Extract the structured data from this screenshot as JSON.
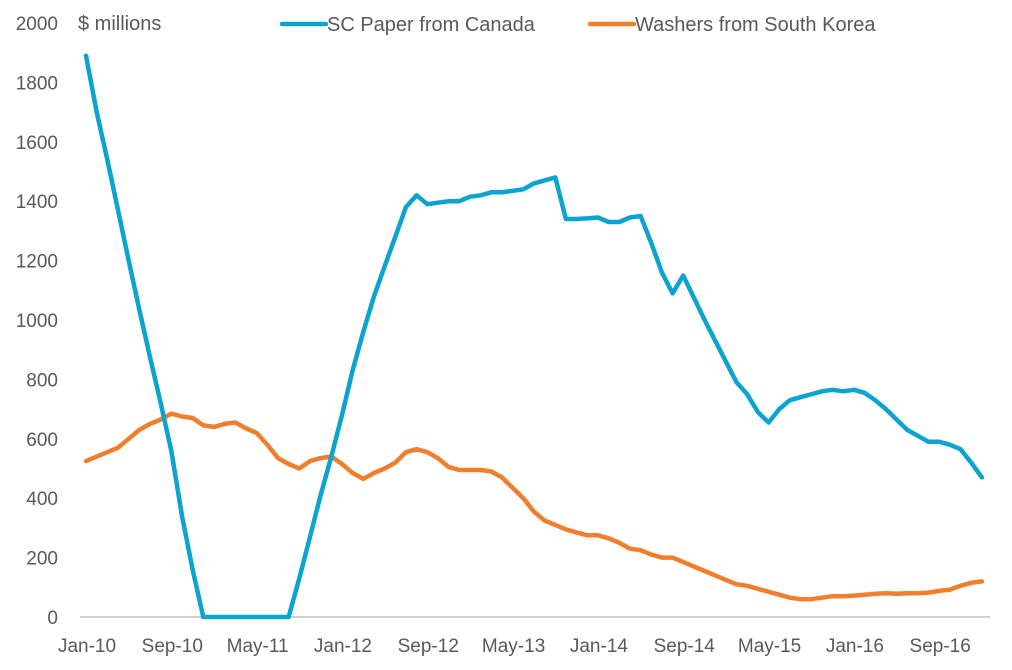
{
  "chart_data": {
    "type": "line",
    "title": "",
    "ylabel": "$ millions",
    "xlabel": "",
    "ylim": [
      0,
      2000
    ],
    "yticks": [
      0,
      200,
      400,
      600,
      800,
      1000,
      1200,
      1400,
      1600,
      1800,
      2000
    ],
    "x_start": "Jan-10",
    "x_end": "Jan-17",
    "x_frequency": "monthly",
    "xtick_labels": [
      "Jan-10",
      "Sep-10",
      "May-11",
      "Jan-12",
      "Sep-12",
      "May-13",
      "Jan-14",
      "Sep-14",
      "May-15",
      "Jan-16",
      "Sep-16"
    ],
    "grid": false,
    "legend_position": "top",
    "series": [
      {
        "name": "SC Paper from Canada",
        "color": "#0ba3cf",
        "values": [
          1890,
          1700,
          1540,
          1370,
          1200,
          1035,
          875,
          720,
          560,
          340,
          160,
          0,
          0,
          0,
          0,
          0,
          0,
          0,
          0,
          0,
          130,
          270,
          410,
          540,
          680,
          830,
          960,
          1080,
          1180,
          1280,
          1380,
          1420,
          1390,
          1395,
          1400,
          1400,
          1415,
          1420,
          1430,
          1430,
          1435,
          1440,
          1460,
          1470,
          1480,
          1340,
          1340,
          1342,
          1345,
          1330,
          1330,
          1345,
          1350,
          1260,
          1160,
          1090,
          1150,
          1075,
          1000,
          930,
          860,
          790,
          750,
          690,
          655,
          700,
          730,
          740,
          750,
          760,
          765,
          760,
          765,
          755,
          730,
          700,
          665,
          630,
          610,
          590,
          590,
          580,
          565,
          520,
          470
        ]
      },
      {
        "name": "Washers from South Korea",
        "color": "#f07f2d",
        "values": [
          525,
          540,
          555,
          570,
          600,
          630,
          650,
          665,
          685,
          675,
          670,
          645,
          640,
          650,
          655,
          635,
          620,
          580,
          535,
          515,
          500,
          525,
          535,
          540,
          515,
          485,
          465,
          485,
          500,
          520,
          555,
          565,
          555,
          535,
          505,
          495,
          495,
          495,
          490,
          470,
          435,
          400,
          355,
          325,
          310,
          295,
          285,
          275,
          275,
          265,
          250,
          230,
          225,
          210,
          200,
          200,
          185,
          170,
          155,
          140,
          125,
          110,
          105,
          95,
          85,
          75,
          65,
          60,
          60,
          65,
          70,
          70,
          72,
          75,
          78,
          80,
          78,
          80,
          80,
          82,
          88,
          92,
          105,
          115,
          120
        ]
      }
    ]
  }
}
